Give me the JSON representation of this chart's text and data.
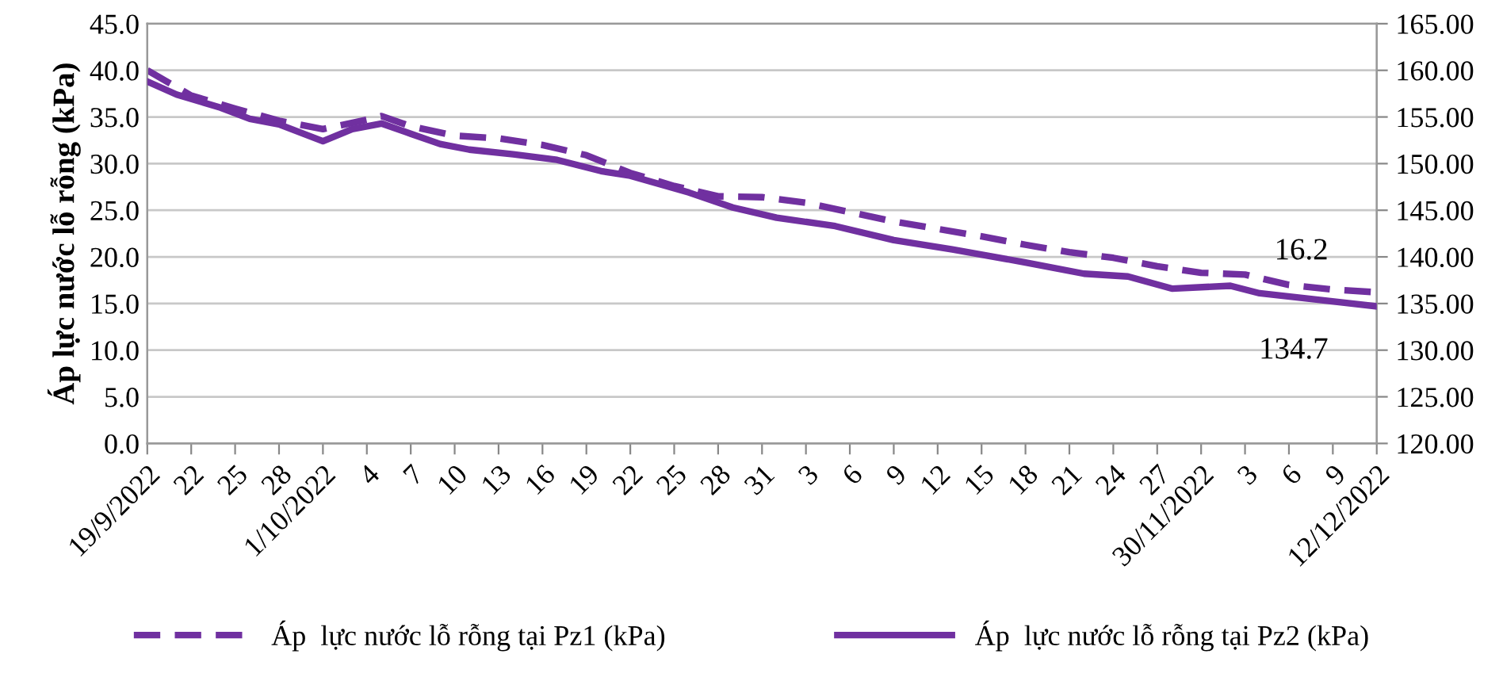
{
  "chart_data": {
    "type": "line",
    "ylabel": "Áp lực nước lỗ rỗng (kPa)",
    "xlim": [
      "2022-09-19",
      "2022-12-12"
    ],
    "xticks": [
      {
        "value": "2022-09-19",
        "label": "19/9/2022"
      },
      {
        "value": "2022-09-22",
        "label": "22"
      },
      {
        "value": "2022-09-25",
        "label": "25"
      },
      {
        "value": "2022-09-28",
        "label": "28"
      },
      {
        "value": "2022-10-01",
        "label": "1/10/2022"
      },
      {
        "value": "2022-10-04",
        "label": "4"
      },
      {
        "value": "2022-10-07",
        "label": "7"
      },
      {
        "value": "2022-10-10",
        "label": "10"
      },
      {
        "value": "2022-10-13",
        "label": "13"
      },
      {
        "value": "2022-10-16",
        "label": "16"
      },
      {
        "value": "2022-10-19",
        "label": "19"
      },
      {
        "value": "2022-10-22",
        "label": "22"
      },
      {
        "value": "2022-10-25",
        "label": "25"
      },
      {
        "value": "2022-10-28",
        "label": "28"
      },
      {
        "value": "2022-10-31",
        "label": "31"
      },
      {
        "value": "2022-11-03",
        "label": "3"
      },
      {
        "value": "2022-11-06",
        "label": "6"
      },
      {
        "value": "2022-11-09",
        "label": "9"
      },
      {
        "value": "2022-11-12",
        "label": "12"
      },
      {
        "value": "2022-11-15",
        "label": "15"
      },
      {
        "value": "2022-11-18",
        "label": "18"
      },
      {
        "value": "2022-11-21",
        "label": "21"
      },
      {
        "value": "2022-11-24",
        "label": "24"
      },
      {
        "value": "2022-11-27",
        "label": "27"
      },
      {
        "value": "2022-11-30",
        "label": "30/11/2022"
      },
      {
        "value": "2022-12-03",
        "label": "3"
      },
      {
        "value": "2022-12-06",
        "label": "6"
      },
      {
        "value": "2022-12-09",
        "label": "9"
      },
      {
        "value": "2022-12-12",
        "label": "12/12/2022"
      }
    ],
    "ylim": [
      0,
      45
    ],
    "yticks": [
      {
        "value": 0,
        "label": "0.0"
      },
      {
        "value": 5,
        "label": "5.0"
      },
      {
        "value": 10,
        "label": "10.0"
      },
      {
        "value": 15,
        "label": "15.0"
      },
      {
        "value": 20,
        "label": "20.0"
      },
      {
        "value": 25,
        "label": "25.0"
      },
      {
        "value": 30,
        "label": "30.0"
      },
      {
        "value": 35,
        "label": "35.0"
      },
      {
        "value": 40,
        "label": "40.0"
      },
      {
        "value": 45,
        "label": "45.0"
      }
    ],
    "y2lim": [
      120,
      165
    ],
    "y2ticks": [
      {
        "value": 120,
        "label": "120.00"
      },
      {
        "value": 125,
        "label": "125.00"
      },
      {
        "value": 130,
        "label": "130.00"
      },
      {
        "value": 135,
        "label": "135.00"
      },
      {
        "value": 140,
        "label": "140.00"
      },
      {
        "value": 145,
        "label": "145.00"
      },
      {
        "value": 150,
        "label": "150.00"
      },
      {
        "value": 155,
        "label": "155.00"
      },
      {
        "value": 160,
        "label": "160.00"
      },
      {
        "value": 165,
        "label": "165.00"
      }
    ],
    "grid": "y",
    "legend": "bottom",
    "series": [
      {
        "name": "Áp  lực nước lỗ rỗng tại Pz1 (kPa)",
        "color": "#7030a0",
        "line_style": "dashed",
        "x": [
          "2022-09-19",
          "2022-09-22",
          "2022-09-25",
          "2022-09-28",
          "2022-10-01",
          "2022-10-04",
          "2022-10-05",
          "2022-10-07",
          "2022-10-10",
          "2022-10-13",
          "2022-10-16",
          "2022-10-19",
          "2022-10-22",
          "2022-10-25",
          "2022-10-28",
          "2022-10-31",
          "2022-11-03",
          "2022-11-06",
          "2022-11-09",
          "2022-11-12",
          "2022-11-15",
          "2022-11-18",
          "2022-11-21",
          "2022-11-24",
          "2022-11-27",
          "2022-11-30",
          "2022-12-03",
          "2022-12-06",
          "2022-12-09",
          "2022-12-12"
        ],
        "values": [
          40.0,
          37.3,
          35.9,
          34.6,
          33.7,
          34.7,
          35.1,
          34.0,
          33.0,
          32.7,
          32.0,
          30.9,
          29.0,
          27.6,
          26.5,
          26.4,
          25.8,
          24.8,
          23.8,
          23.0,
          22.2,
          21.3,
          20.5,
          19.9,
          19.0,
          18.3,
          18.1,
          17.0,
          16.5,
          16.2
        ]
      },
      {
        "name": "Áp  lực nước lỗ rỗng tại Pz2 (kPa)",
        "color": "#7030a0",
        "line_style": "solid",
        "axis": "y2",
        "x": [
          "2022-09-19",
          "2022-09-21",
          "2022-09-24",
          "2022-09-26",
          "2022-09-28",
          "2022-10-01",
          "2022-10-03",
          "2022-10-04",
          "2022-10-05",
          "2022-10-07",
          "2022-10-09",
          "2022-10-11",
          "2022-10-14",
          "2022-10-17",
          "2022-10-20",
          "2022-10-22",
          "2022-10-24",
          "2022-10-26",
          "2022-10-29",
          "2022-11-01",
          "2022-11-05",
          "2022-11-09",
          "2022-11-13",
          "2022-11-18",
          "2022-11-22",
          "2022-11-25",
          "2022-11-28",
          "2022-12-02",
          "2022-12-04",
          "2022-12-08",
          "2022-12-12"
        ],
        "values": [
          158.8,
          157.4,
          156.0,
          154.8,
          154.2,
          152.4,
          153.7,
          154.0,
          154.3,
          153.2,
          152.1,
          151.5,
          151.0,
          150.4,
          149.2,
          148.7,
          147.8,
          146.9,
          145.3,
          144.2,
          143.3,
          141.8,
          140.8,
          139.4,
          138.2,
          137.9,
          136.6,
          136.9,
          136.1,
          135.4,
          134.7
        ]
      }
    ],
    "annotations": [
      {
        "text": "16.2",
        "x": "2022-12-12",
        "y": 16.2
      },
      "134.7"
    ]
  }
}
